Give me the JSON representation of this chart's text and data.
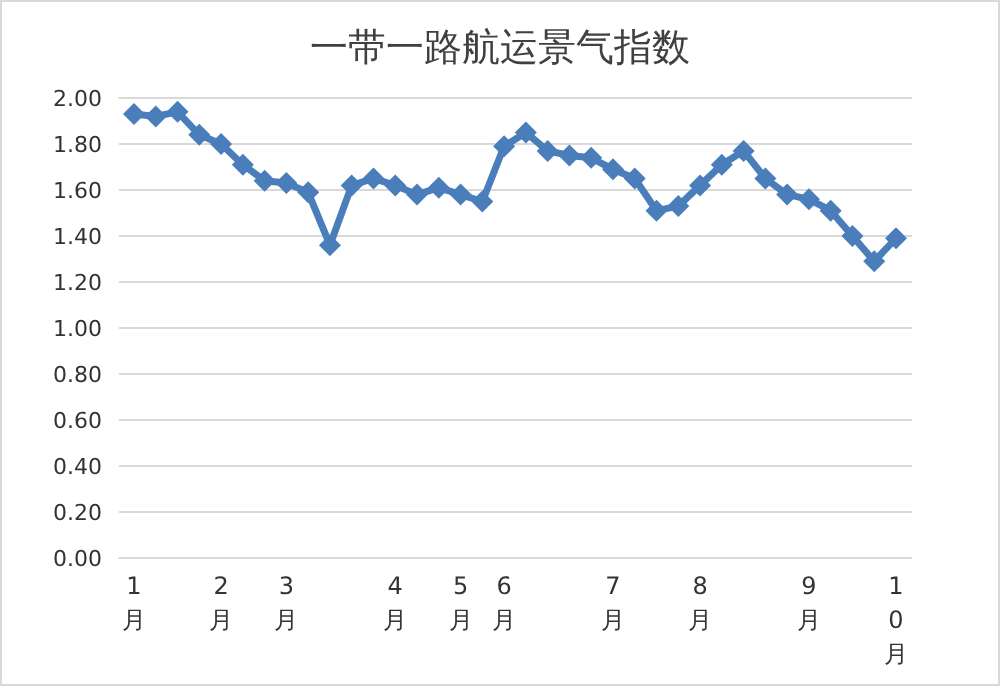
{
  "chart_data": {
    "type": "line",
    "title": "一带一路航运景气指数",
    "categories": [
      "1月",
      null,
      null,
      null,
      "2月",
      null,
      null,
      "3月",
      null,
      null,
      null,
      null,
      "4月",
      null,
      null,
      "5月",
      null,
      "6月",
      null,
      null,
      null,
      null,
      "7月",
      null,
      null,
      null,
      "8月",
      null,
      null,
      null,
      null,
      "9月",
      null,
      null,
      null,
      "10月"
    ],
    "series": [
      {
        "color": "#4a7ebb",
        "values": [
          1.93,
          1.92,
          1.94,
          1.84,
          1.8,
          1.71,
          1.64,
          1.63,
          1.59,
          1.36,
          1.62,
          1.65,
          1.62,
          1.58,
          1.61,
          1.58,
          1.55,
          1.79,
          1.85,
          1.77,
          1.75,
          1.74,
          1.69,
          1.65,
          1.51,
          1.53,
          1.62,
          1.71,
          1.77,
          1.65,
          1.58,
          1.56,
          1.51,
          1.4,
          1.29,
          1.39
        ]
      }
    ],
    "ylim": [
      0,
      2
    ],
    "yticks": [
      {
        "value": 0,
        "label": "0.00"
      },
      {
        "value": 0.2,
        "label": "0.20"
      },
      {
        "value": 0.4,
        "label": "0.40"
      },
      {
        "value": 0.6,
        "label": "0.60"
      },
      {
        "value": 0.8,
        "label": "0.80"
      },
      {
        "value": 1,
        "label": "1.00"
      },
      {
        "value": 1.2,
        "label": "1.20"
      },
      {
        "value": 1.4,
        "label": "1.40"
      },
      {
        "value": 1.6,
        "label": "1.60"
      },
      {
        "value": 1.8,
        "label": "1.80"
      },
      {
        "value": 2,
        "label": "2.00"
      }
    ],
    "grid": "y",
    "legend": false,
    "marker": "diamond",
    "line_style": "solid"
  }
}
